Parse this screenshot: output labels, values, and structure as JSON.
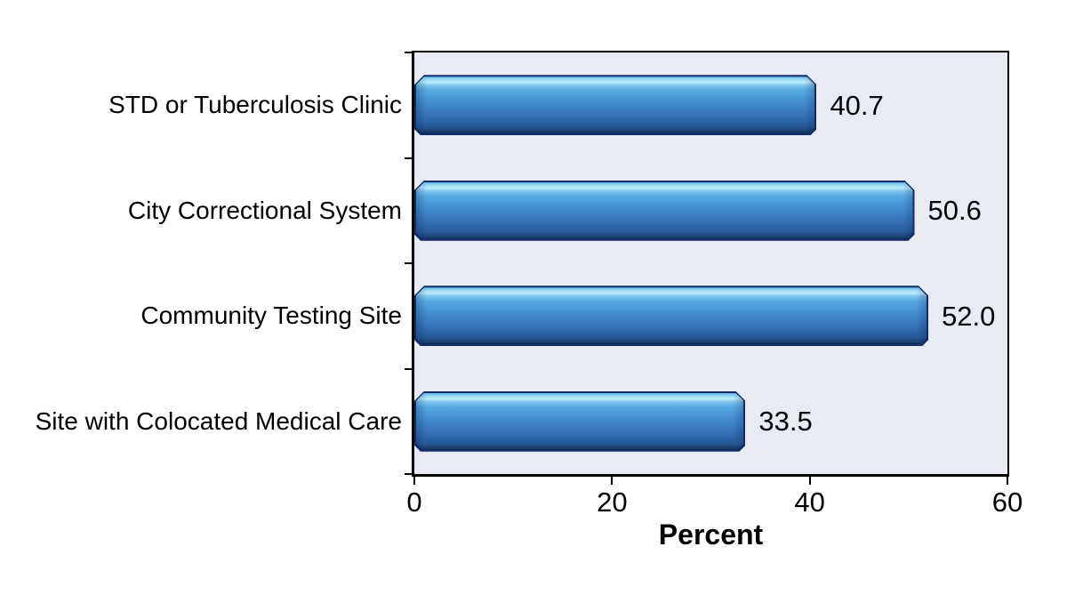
{
  "chart_data": {
    "type": "bar",
    "orientation": "horizontal",
    "title": "",
    "categories": [
      "STD or Tuberculosis Clinic",
      "City Correctional System",
      "Community Testing Site",
      "Site with Colocated Medical Care"
    ],
    "values": [
      40.7,
      50.6,
      52.0,
      33.5
    ],
    "value_labels": [
      "40.7",
      "50.6",
      "52.0",
      "33.5"
    ],
    "xlabel": "Percent",
    "ylabel": "",
    "xlim": [
      0,
      60
    ],
    "xticks": [
      0,
      20,
      40,
      60
    ],
    "xtick_labels": [
      "0",
      "20",
      "40",
      "60"
    ],
    "grid": false,
    "legend": null,
    "colors": {
      "bar_fill_mid": "#3f87c8",
      "bar_highlight": "#bdedfc",
      "bar_shadow": "#16335f",
      "bar_outline": "#122d66",
      "plot_background": "#e8ebf3",
      "axis": "#000000",
      "text": "#000000",
      "page_background": "#ffffff"
    }
  }
}
